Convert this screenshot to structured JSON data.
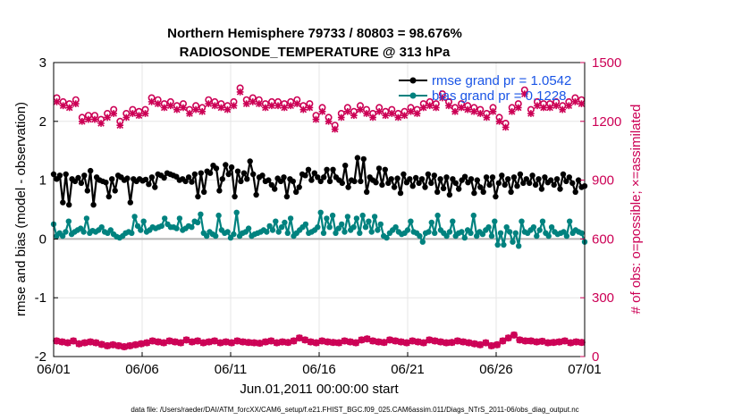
{
  "chart_data": {
    "type": "line",
    "title": "Northern Hemisphere 79733 / 80803 = 98.676%",
    "subtitle": "RADIOSONDE_TEMPERATURE @ 313 hPa",
    "xlabel": "Jun.01,2011 00:00:00 start",
    "ylabel": "rmse and bias (model - observation)",
    "ylabel_right": "# of obs: o=possible; ×=assimilated",
    "footnote": "data file: /Users/raeder/DAI/ATM_forcXX/CAM6_setup/f.e21.FHIST_BGC.f09_025.CAM6assim.011/Diags_NTrS_2011-06/obs_diag_output.nc",
    "x_ticks": [
      "06/01",
      "06/06",
      "06/11",
      "06/16",
      "06/21",
      "06/26",
      "07/01"
    ],
    "y_ticks": [
      "-2",
      "-1",
      "0",
      "1",
      "2",
      "3"
    ],
    "y2_ticks": [
      "0",
      "300",
      "600",
      "900",
      "1200",
      "1500"
    ],
    "ylim": [
      -2,
      3
    ],
    "y2lim": [
      0,
      1500
    ],
    "xlim_days": [
      0,
      30
    ],
    "grid": true,
    "legend": {
      "placement": "top-right",
      "entries": [
        "rmse grand pr = 1.0542",
        "bias grand pr = 0.1228"
      ]
    },
    "colors": {
      "rmse": "#000000",
      "bias": "#00827f",
      "count": "#cc0055",
      "zero": "#b4b4b4"
    },
    "series": [
      {
        "name": "rmse",
        "values": [
          1.1,
          1.02,
          1.08,
          0.62,
          1.1,
          0.58,
          1.02,
          0.98,
          1.04,
          0.95,
          1.08,
          0.82,
          1.16,
          0.58,
          1.05,
          1.0,
          0.98,
          0.96,
          0.72,
          1.02,
          0.82,
          1.08,
          1.05,
          1.0,
          1.03,
          0.62,
          1.02,
          0.98,
          1.02,
          0.99,
          1.01,
          0.93,
          1.05,
          0.88,
          1.1,
          1.08,
          1.04,
          1.12,
          1.1,
          1.08,
          1.06,
          1.0,
          1.02,
          0.98,
          1.05,
          0.97,
          1.1,
          0.72,
          1.12,
          0.8,
          1.15,
          1.12,
          1.25,
          1.2,
          0.82,
          1.02,
          1.26,
          1.1,
          1.22,
          0.72,
          1.15,
          0.98,
          1.12,
          1.02,
          1.32,
          1.1,
          0.75,
          1.05,
          1.08,
          0.98,
          1.0,
          0.92,
          0.85,
          1.03,
          0.98,
          1.05,
          0.72,
          1.02,
          0.98,
          0.8,
          0.88,
          1.1,
          1.08,
          1.18,
          1.0,
          1.12,
          1.05,
          0.98,
          1.05,
          1.18,
          0.98,
          1.18,
          1.05,
          1.0,
          0.95,
          1.25,
          0.88,
          1.0,
          0.98,
          1.38,
          0.98,
          1.36,
          0.8,
          1.05,
          1.0,
          0.96,
          1.2,
          0.92,
          1.18,
          0.95,
          1.02,
          0.88,
          1.03,
          0.78,
          1.1,
          0.96,
          1.02,
          0.9,
          1.04,
          0.95,
          1.02,
          0.88,
          1.1,
          0.95,
          1.08,
          0.8,
          1.02,
          0.86,
          1.05,
          0.75,
          1.02,
          0.95,
          0.85,
          1.0,
          1.06,
          0.96,
          1.02,
          0.78,
          1.0,
          0.88,
          0.8,
          1.05,
          0.92,
          1.05,
          0.72,
          0.95,
          1.08,
          0.92,
          1.02,
          0.8,
          1.05,
          0.9,
          1.1,
          0.95,
          1.02,
          0.95,
          1.08,
          0.92,
          1.02,
          0.85,
          1.05,
          0.96,
          1.0,
          0.92,
          1.02,
          0.85,
          1.1,
          0.98,
          1.05,
          0.95,
          0.8,
          1.0,
          0.88,
          0.9
        ]
      },
      {
        "name": "bias",
        "values": [
          0.25,
          0.05,
          0.1,
          0.05,
          0.12,
          0.3,
          0.08,
          0.12,
          0.15,
          0.18,
          0.12,
          0.35,
          0.1,
          0.14,
          0.12,
          0.15,
          0.2,
          0.12,
          0.1,
          0.15,
          0.08,
          0.04,
          0.02,
          0.05,
          0.1,
          0.12,
          0.1,
          0.38,
          0.22,
          0.15,
          0.3,
          0.12,
          0.15,
          0.2,
          0.18,
          0.2,
          0.22,
          0.35,
          0.25,
          0.2,
          0.2,
          0.18,
          0.35,
          0.15,
          0.18,
          0.22,
          0.2,
          0.3,
          0.28,
          0.42,
          0.1,
          0.05,
          0.12,
          0.08,
          0.05,
          0.4,
          0.15,
          0.1,
          0.12,
          0.02,
          0.08,
          0.45,
          0.05,
          0.1,
          0.12,
          0.18,
          0.05,
          0.08,
          0.1,
          0.12,
          0.15,
          0.12,
          0.22,
          0.15,
          0.3,
          0.12,
          0.2,
          0.28,
          0.1,
          0.35,
          0.05,
          0.1,
          0.15,
          0.2,
          0.25,
          0.1,
          0.12,
          0.15,
          0.2,
          0.45,
          0.1,
          0.35,
          0.2,
          0.4,
          0.1,
          0.18,
          0.25,
          0.12,
          0.38,
          0.15,
          0.2,
          0.35,
          0.1,
          0.4,
          0.2,
          0.3,
          0.12,
          0.38,
          0.15,
          0.25,
          0.05,
          0.02,
          0.1,
          0.15,
          0.2,
          0.12,
          0.08,
          0.1,
          0.15,
          0.3,
          0.12,
          0.1,
          0.05,
          -0.05,
          0.1,
          0.12,
          0.28,
          0.1,
          0.4,
          0.15,
          0.1,
          0.05,
          0.12,
          0.3,
          0.05,
          0.1,
          0.12,
          0.02,
          0.15,
          0.1,
          0.4,
          0.05,
          0.12,
          0.08,
          0.15,
          0.2,
          0.05,
          0.3,
          -0.1,
          0.1,
          -0.1,
          0.2,
          0.12,
          -0.05,
          0.1,
          -0.12,
          0.3,
          0.12,
          0.1,
          0.15,
          0.2,
          0.05,
          0.15,
          0.3,
          0.1,
          0.05,
          0.2,
          0.12,
          0.08,
          0.1,
          0.12,
          0.05,
          0.3,
          0.1,
          0.15,
          0.12,
          0.1,
          -0.05
        ]
      },
      {
        "name": "obs_possible",
        "values": [
          1320,
          1300,
          1290,
          1310,
          1220,
          1230,
          1230,
          1210,
          1240,
          1260,
          1200,
          1240,
          1260,
          1250,
          1260,
          1320,
          1310,
          1290,
          1300,
          1280,
          1290,
          1260,
          1280,
          1270,
          1310,
          1300,
          1290,
          1280,
          1300,
          1370,
          1310,
          1320,
          1310,
          1290,
          1300,
          1300,
          1290,
          1300,
          1310,
          1280,
          1290,
          1230,
          1270,
          1220,
          1180,
          1240,
          1270,
          1250,
          1280,
          1260,
          1240,
          1270,
          1250,
          1260,
          1240,
          1250,
          1270,
          1260,
          1290,
          1300,
          1290,
          1340,
          1300,
          1270,
          1290,
          1280,
          1270,
          1260,
          1240,
          1270,
          1220,
          1190,
          1270,
          1290,
          1360,
          1260,
          1300,
          1290,
          1290,
          1300,
          1280,
          1300,
          1320,
          1310
        ]
      },
      {
        "name": "obs_assimilated",
        "values": [
          1300,
          1280,
          1270,
          1290,
          1200,
          1210,
          1210,
          1190,
          1220,
          1240,
          1180,
          1220,
          1240,
          1230,
          1240,
          1300,
          1290,
          1270,
          1280,
          1260,
          1270,
          1240,
          1260,
          1250,
          1290,
          1280,
          1270,
          1260,
          1280,
          1350,
          1290,
          1300,
          1290,
          1270,
          1280,
          1280,
          1270,
          1280,
          1290,
          1260,
          1270,
          1210,
          1250,
          1200,
          1160,
          1220,
          1250,
          1230,
          1260,
          1240,
          1220,
          1250,
          1230,
          1240,
          1220,
          1230,
          1250,
          1240,
          1270,
          1280,
          1270,
          1320,
          1280,
          1250,
          1270,
          1260,
          1250,
          1240,
          1220,
          1250,
          1200,
          1170,
          1250,
          1270,
          1340,
          1240,
          1280,
          1270,
          1270,
          1280,
          1260,
          1280,
          1300,
          1290
        ]
      },
      {
        "name": "obs_bottom",
        "values": [
          80,
          75,
          70,
          80,
          65,
          70,
          75,
          70,
          62,
          55,
          60,
          55,
          50,
          55,
          60,
          65,
          70,
          80,
          75,
          70,
          80,
          75,
          70,
          85,
          75,
          80,
          70,
          75,
          80,
          70,
          75,
          70,
          80,
          75,
          72,
          70,
          68,
          75,
          80,
          70,
          75,
          72,
          80,
          95,
          85,
          75,
          70,
          80,
          75,
          72,
          70,
          80,
          75,
          70,
          85,
          90,
          80,
          75,
          72,
          85,
          80,
          75,
          70,
          80,
          75,
          70,
          85,
          80,
          75,
          70,
          72,
          80,
          75,
          70,
          65,
          60,
          70,
          55,
          60,
          80,
          95,
          110,
          85,
          80,
          80,
          75,
          78,
          70,
          72,
          75,
          80,
          70,
          75,
          72
        ]
      }
    ]
  }
}
